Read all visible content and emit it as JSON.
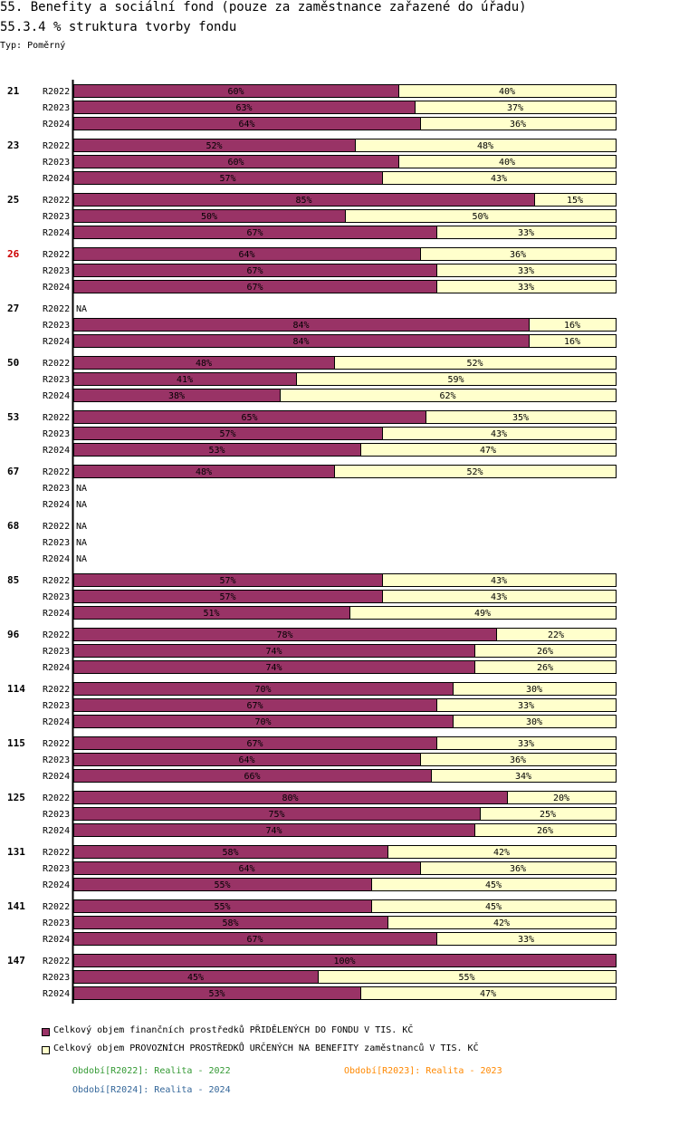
{
  "header": {
    "title": "55. Benefity a sociální fond (pouze za zaměstnance zařazené do úřadu)",
    "subtitle": "55.3.4 % struktura tvorby fondu",
    "type_label": "Typ: Poměrný"
  },
  "colors": {
    "series1": "#993366",
    "series2": "#ffffcc",
    "highlight": "#cc0000",
    "p2022": "#339933",
    "p2023": "#ff8800",
    "p2024": "#336699"
  },
  "chart_data": {
    "type": "bar",
    "orientation": "horizontal-stacked-100",
    "series": [
      {
        "name": "Celkový objem finančních prostředků PŘIDĚLENÝCH DO FONDU V TIS. KČ",
        "color": "#993366"
      },
      {
        "name": "Celkový objem PROVOZNÍCH PROSTŘEDKŮ URČENÝCH NA BENEFITY zaměstnanců V TIS. KČ",
        "color": "#ffffcc"
      }
    ],
    "groups": [
      {
        "label": "21",
        "highlight": false,
        "rows": [
          {
            "period": "R2022",
            "values": [
              60,
              40
            ]
          },
          {
            "period": "R2023",
            "values": [
              63,
              37
            ]
          },
          {
            "period": "R2024",
            "values": [
              64,
              36
            ]
          }
        ]
      },
      {
        "label": "23",
        "highlight": false,
        "rows": [
          {
            "period": "R2022",
            "values": [
              52,
              48
            ]
          },
          {
            "period": "R2023",
            "values": [
              60,
              40
            ]
          },
          {
            "period": "R2024",
            "values": [
              57,
              43
            ]
          }
        ]
      },
      {
        "label": "25",
        "highlight": false,
        "rows": [
          {
            "period": "R2022",
            "values": [
              85,
              15
            ]
          },
          {
            "period": "R2023",
            "values": [
              50,
              50
            ]
          },
          {
            "period": "R2024",
            "values": [
              67,
              33
            ]
          }
        ]
      },
      {
        "label": "26",
        "highlight": true,
        "rows": [
          {
            "period": "R2022",
            "values": [
              64,
              36
            ]
          },
          {
            "period": "R2023",
            "values": [
              67,
              33
            ]
          },
          {
            "period": "R2024",
            "values": [
              67,
              33
            ]
          }
        ]
      },
      {
        "label": "27",
        "highlight": false,
        "rows": [
          {
            "period": "R2022",
            "values": null
          },
          {
            "period": "R2023",
            "values": [
              84,
              16
            ]
          },
          {
            "period": "R2024",
            "values": [
              84,
              16
            ]
          }
        ]
      },
      {
        "label": "50",
        "highlight": false,
        "rows": [
          {
            "period": "R2022",
            "values": [
              48,
              52
            ]
          },
          {
            "period": "R2023",
            "values": [
              41,
              59
            ]
          },
          {
            "period": "R2024",
            "values": [
              38,
              62
            ]
          }
        ]
      },
      {
        "label": "53",
        "highlight": false,
        "rows": [
          {
            "period": "R2022",
            "values": [
              65,
              35
            ]
          },
          {
            "period": "R2023",
            "values": [
              57,
              43
            ]
          },
          {
            "period": "R2024",
            "values": [
              53,
              47
            ]
          }
        ]
      },
      {
        "label": "67",
        "highlight": false,
        "rows": [
          {
            "period": "R2022",
            "values": [
              48,
              52
            ]
          },
          {
            "period": "R2023",
            "values": null
          },
          {
            "period": "R2024",
            "values": null
          }
        ]
      },
      {
        "label": "68",
        "highlight": false,
        "rows": [
          {
            "period": "R2022",
            "values": null
          },
          {
            "period": "R2023",
            "values": null
          },
          {
            "period": "R2024",
            "values": null
          }
        ]
      },
      {
        "label": "85",
        "highlight": false,
        "rows": [
          {
            "period": "R2022",
            "values": [
              57,
              43
            ]
          },
          {
            "period": "R2023",
            "values": [
              57,
              43
            ]
          },
          {
            "period": "R2024",
            "values": [
              51,
              49
            ]
          }
        ]
      },
      {
        "label": "96",
        "highlight": false,
        "rows": [
          {
            "period": "R2022",
            "values": [
              78,
              22
            ]
          },
          {
            "period": "R2023",
            "values": [
              74,
              26
            ]
          },
          {
            "period": "R2024",
            "values": [
              74,
              26
            ]
          }
        ]
      },
      {
        "label": "114",
        "highlight": false,
        "rows": [
          {
            "period": "R2022",
            "values": [
              70,
              30
            ]
          },
          {
            "period": "R2023",
            "values": [
              67,
              33
            ]
          },
          {
            "period": "R2024",
            "values": [
              70,
              30
            ]
          }
        ]
      },
      {
        "label": "115",
        "highlight": false,
        "rows": [
          {
            "period": "R2022",
            "values": [
              67,
              33
            ]
          },
          {
            "period": "R2023",
            "values": [
              64,
              36
            ]
          },
          {
            "period": "R2024",
            "values": [
              66,
              34
            ]
          }
        ]
      },
      {
        "label": "125",
        "highlight": false,
        "rows": [
          {
            "period": "R2022",
            "values": [
              80,
              20
            ]
          },
          {
            "period": "R2023",
            "values": [
              75,
              25
            ]
          },
          {
            "period": "R2024",
            "values": [
              74,
              26
            ]
          }
        ]
      },
      {
        "label": "131",
        "highlight": false,
        "rows": [
          {
            "period": "R2022",
            "values": [
              58,
              42
            ]
          },
          {
            "period": "R2023",
            "values": [
              64,
              36
            ]
          },
          {
            "period": "R2024",
            "values": [
              55,
              45
            ]
          }
        ]
      },
      {
        "label": "141",
        "highlight": false,
        "rows": [
          {
            "period": "R2022",
            "values": [
              55,
              45
            ]
          },
          {
            "period": "R2023",
            "values": [
              58,
              42
            ]
          },
          {
            "period": "R2024",
            "values": [
              67,
              33
            ]
          }
        ]
      },
      {
        "label": "147",
        "highlight": false,
        "rows": [
          {
            "period": "R2022",
            "values": [
              100,
              0
            ]
          },
          {
            "period": "R2023",
            "values": [
              45,
              55
            ]
          },
          {
            "period": "R2024",
            "values": [
              53,
              47
            ]
          }
        ]
      }
    ],
    "na_label": "NA",
    "value_suffix": "%",
    "xlim": [
      0,
      100
    ]
  },
  "legend": {
    "series1": "Celkový objem finančních prostředků PŘIDĚLENÝCH DO FONDU V TIS. KČ",
    "series2": "Celkový objem PROVOZNÍCH PROSTŘEDKŮ URČENÝCH NA BENEFITY zaměstnanců V TIS. KČ",
    "p2022": "Období[R2022]: Realita - 2022",
    "p2023": "Období[R2023]: Realita - 2023",
    "p2024": "Období[R2024]: Realita - 2024"
  }
}
